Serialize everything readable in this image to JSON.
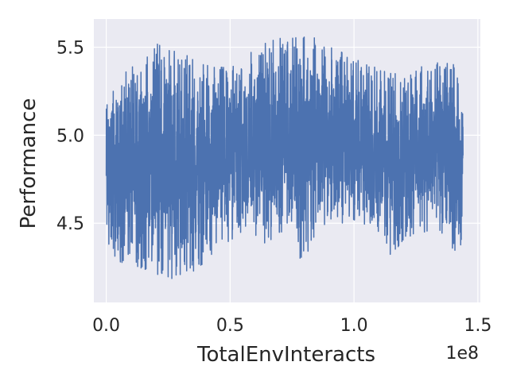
{
  "chart_data": {
    "type": "line",
    "title": "",
    "xlabel": "TotalEnvInteracts",
    "ylabel": "Performance",
    "x_offset_label": "1e8",
    "xlim": [
      -0.05,
      1.51
    ],
    "ylim": [
      4.05,
      5.66
    ],
    "x_ticks": [
      {
        "value": 0.0,
        "label": "0.0"
      },
      {
        "value": 0.5,
        "label": "0.5"
      },
      {
        "value": 1.0,
        "label": "1.0"
      },
      {
        "value": 1.5,
        "label": "1.5"
      }
    ],
    "y_ticks": [
      {
        "value": 4.5,
        "label": "4.5"
      },
      {
        "value": 5.0,
        "label": "5.0"
      },
      {
        "value": 5.5,
        "label": "5.5"
      }
    ],
    "grid": true,
    "background": "#eaeaf2",
    "series_color": "#4c72b0",
    "series": [
      {
        "envelope": [
          {
            "x": 0.0,
            "lo": 4.33,
            "hi": 5.25
          },
          {
            "x": 0.05,
            "lo": 4.28,
            "hi": 5.33
          },
          {
            "x": 0.1,
            "lo": 4.27,
            "hi": 5.38
          },
          {
            "x": 0.15,
            "lo": 4.24,
            "hi": 5.45
          },
          {
            "x": 0.2,
            "lo": 4.2,
            "hi": 5.52
          },
          {
            "x": 0.25,
            "lo": 4.18,
            "hi": 5.5
          },
          {
            "x": 0.3,
            "lo": 4.2,
            "hi": 5.48
          },
          {
            "x": 0.35,
            "lo": 4.17,
            "hi": 5.45
          },
          {
            "x": 0.4,
            "lo": 4.25,
            "hi": 5.4
          },
          {
            "x": 0.45,
            "lo": 4.35,
            "hi": 5.38
          },
          {
            "x": 0.5,
            "lo": 4.4,
            "hi": 5.4
          },
          {
            "x": 0.55,
            "lo": 4.45,
            "hi": 5.45
          },
          {
            "x": 0.6,
            "lo": 4.42,
            "hi": 5.48
          },
          {
            "x": 0.65,
            "lo": 4.38,
            "hi": 5.53
          },
          {
            "x": 0.7,
            "lo": 4.45,
            "hi": 5.55
          },
          {
            "x": 0.75,
            "lo": 4.45,
            "hi": 5.55
          },
          {
            "x": 0.8,
            "lo": 4.22,
            "hi": 5.58
          },
          {
            "x": 0.85,
            "lo": 4.48,
            "hi": 5.55
          },
          {
            "x": 0.9,
            "lo": 4.5,
            "hi": 5.5
          },
          {
            "x": 0.95,
            "lo": 4.5,
            "hi": 5.48
          },
          {
            "x": 1.0,
            "lo": 4.52,
            "hi": 5.45
          },
          {
            "x": 1.05,
            "lo": 4.48,
            "hi": 5.4
          },
          {
            "x": 1.1,
            "lo": 4.45,
            "hi": 5.38
          },
          {
            "x": 1.15,
            "lo": 4.3,
            "hi": 5.35
          },
          {
            "x": 1.2,
            "lo": 4.4,
            "hi": 5.35
          },
          {
            "x": 1.25,
            "lo": 4.45,
            "hi": 5.38
          },
          {
            "x": 1.3,
            "lo": 4.45,
            "hi": 5.4
          },
          {
            "x": 1.35,
            "lo": 4.45,
            "hi": 5.43
          },
          {
            "x": 1.4,
            "lo": 4.35,
            "hi": 5.42
          },
          {
            "x": 1.44,
            "lo": 4.33,
            "hi": 5.2
          }
        ]
      }
    ]
  }
}
